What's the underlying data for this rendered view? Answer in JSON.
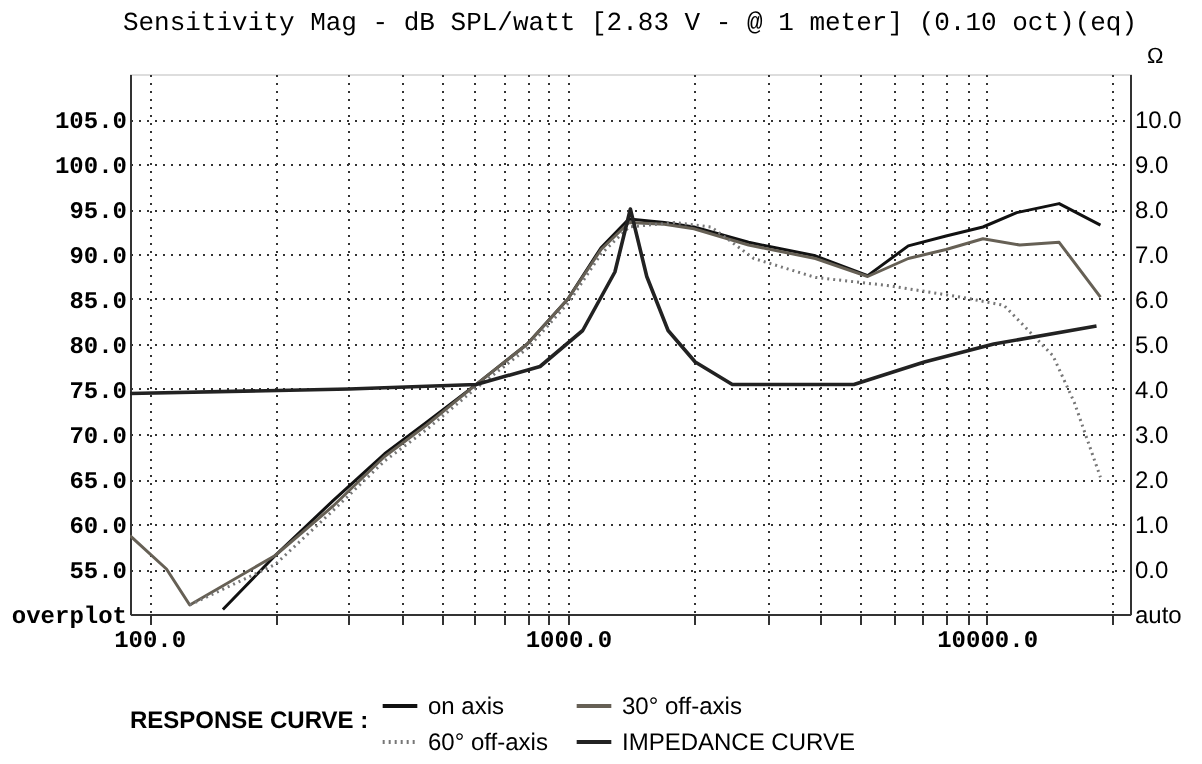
{
  "chart_data": {
    "type": "line",
    "title": "Sensitivity Mag - dB SPL/watt   [2.83 V - @ 1 meter]   (0.10 oct)(eq)",
    "y2label": "Ω",
    "legend_title": "RESPONSE CURVE :",
    "log": "x",
    "grid": true,
    "legend": "bottom",
    "xlim": [
      90,
      22000
    ],
    "ylim": [
      50,
      110
    ],
    "y2lim": [
      -1,
      11
    ],
    "xticks": [
      {
        "value": 100,
        "label": "100.0"
      },
      {
        "value": 200,
        "label": null
      },
      {
        "value": 300,
        "label": null
      },
      {
        "value": 400,
        "label": null
      },
      {
        "value": 500,
        "label": null
      },
      {
        "value": 600,
        "label": null
      },
      {
        "value": 700,
        "label": null
      },
      {
        "value": 800,
        "label": null
      },
      {
        "value": 900,
        "label": null
      },
      {
        "value": 1000,
        "label": "1000.0"
      },
      {
        "value": 2000,
        "label": null
      },
      {
        "value": 3000,
        "label": null
      },
      {
        "value": 4000,
        "label": null
      },
      {
        "value": 5000,
        "label": null
      },
      {
        "value": 6000,
        "label": null
      },
      {
        "value": 7000,
        "label": null
      },
      {
        "value": 8000,
        "label": null
      },
      {
        "value": 9000,
        "label": null
      },
      {
        "value": 10000,
        "label": "10000.0"
      },
      {
        "value": 20000,
        "label": null
      }
    ],
    "yticks": [
      {
        "value": 50,
        "label": "overplot"
      },
      {
        "value": 55,
        "label": "55.0"
      },
      {
        "value": 60,
        "label": "60.0"
      },
      {
        "value": 65,
        "label": "65.0"
      },
      {
        "value": 70,
        "label": "70.0"
      },
      {
        "value": 75,
        "label": "75.0"
      },
      {
        "value": 80,
        "label": "80.0"
      },
      {
        "value": 85,
        "label": "85.0"
      },
      {
        "value": 90,
        "label": "90.0"
      },
      {
        "value": 95,
        "label": "95.0"
      },
      {
        "value": 100,
        "label": "100.0"
      },
      {
        "value": 105,
        "label": "105.0"
      }
    ],
    "y2ticks": [
      {
        "value": -1,
        "label": "auto"
      },
      {
        "value": 0,
        "label": "0.0"
      },
      {
        "value": 1,
        "label": "1.0"
      },
      {
        "value": 2,
        "label": "2.0"
      },
      {
        "value": 3,
        "label": "3.0"
      },
      {
        "value": 4,
        "label": "4.0"
      },
      {
        "value": 5,
        "label": "5.0"
      },
      {
        "value": 6,
        "label": "6.0"
      },
      {
        "value": 7,
        "label": "7.0"
      },
      {
        "value": 8,
        "label": "8.0"
      },
      {
        "value": 9,
        "label": "9.0"
      },
      {
        "value": 10,
        "label": "10.0"
      }
    ],
    "series": [
      {
        "name": "on axis",
        "color": "#111111",
        "line_style": "solid",
        "x": [
          150,
          200,
          275,
          365,
          460,
          600,
          800,
          1000,
          1200,
          1400,
          1700,
          2000,
          2700,
          3900,
          5200,
          6500,
          8000,
          9800,
          11800,
          14900,
          18700
        ],
        "values": [
          50.5,
          56.5,
          62.6,
          67.8,
          71.3,
          75.4,
          80,
          85,
          90.7,
          93.9,
          93.5,
          93,
          91.3,
          89.8,
          87.6,
          90.9,
          92,
          93,
          94.6,
          95.6,
          93.2
        ]
      },
      {
        "name": "30° off-axis",
        "color": "#666055",
        "line_style": "solid",
        "x": [
          90,
          110,
          125,
          200,
          275,
          365,
          460,
          600,
          800,
          1000,
          1200,
          1400,
          1700,
          2000,
          2700,
          3900,
          5200,
          6500,
          8000,
          9800,
          12000,
          14900,
          18700
        ],
        "values": [
          58.7,
          55,
          51,
          56.5,
          62,
          67.5,
          71,
          75.4,
          80,
          85,
          90.5,
          93.5,
          93.3,
          92.8,
          91,
          89.5,
          87.5,
          89.5,
          90.5,
          91.7,
          91,
          91.3,
          85.2
        ]
      },
      {
        "name": "60° off-axis",
        "color": "#777777",
        "line_style": "dotted",
        "x": [
          125,
          200,
          275,
          365,
          460,
          600,
          800,
          1000,
          1200,
          1400,
          1800,
          2200,
          2780,
          3900,
          5800,
          8700,
          11000,
          14400,
          16200,
          17000,
          18700
        ],
        "values": [
          51,
          55.5,
          61.5,
          67,
          70.5,
          75,
          79.5,
          84.5,
          90,
          93,
          93.5,
          93,
          89.5,
          87.4,
          86.5,
          85.2,
          84.3,
          78.7,
          73.5,
          70.7,
          65.2
        ]
      },
      {
        "name": "IMPEDANCE CURVE",
        "color": "#222222",
        "line_style": "solid",
        "axis": "y2",
        "x": [
          90,
          300,
          604,
          858,
          1085,
          1295,
          1410,
          1543,
          1735,
          2014,
          2470,
          3230,
          4820,
          7100,
          10400,
          18300
        ],
        "values": [
          3.9,
          4.0,
          4.1,
          4.5,
          5.3,
          6.6,
          8.0,
          6.5,
          5.3,
          4.6,
          4.1,
          4.1,
          4.1,
          4.6,
          5.0,
          5.4
        ]
      }
    ]
  }
}
